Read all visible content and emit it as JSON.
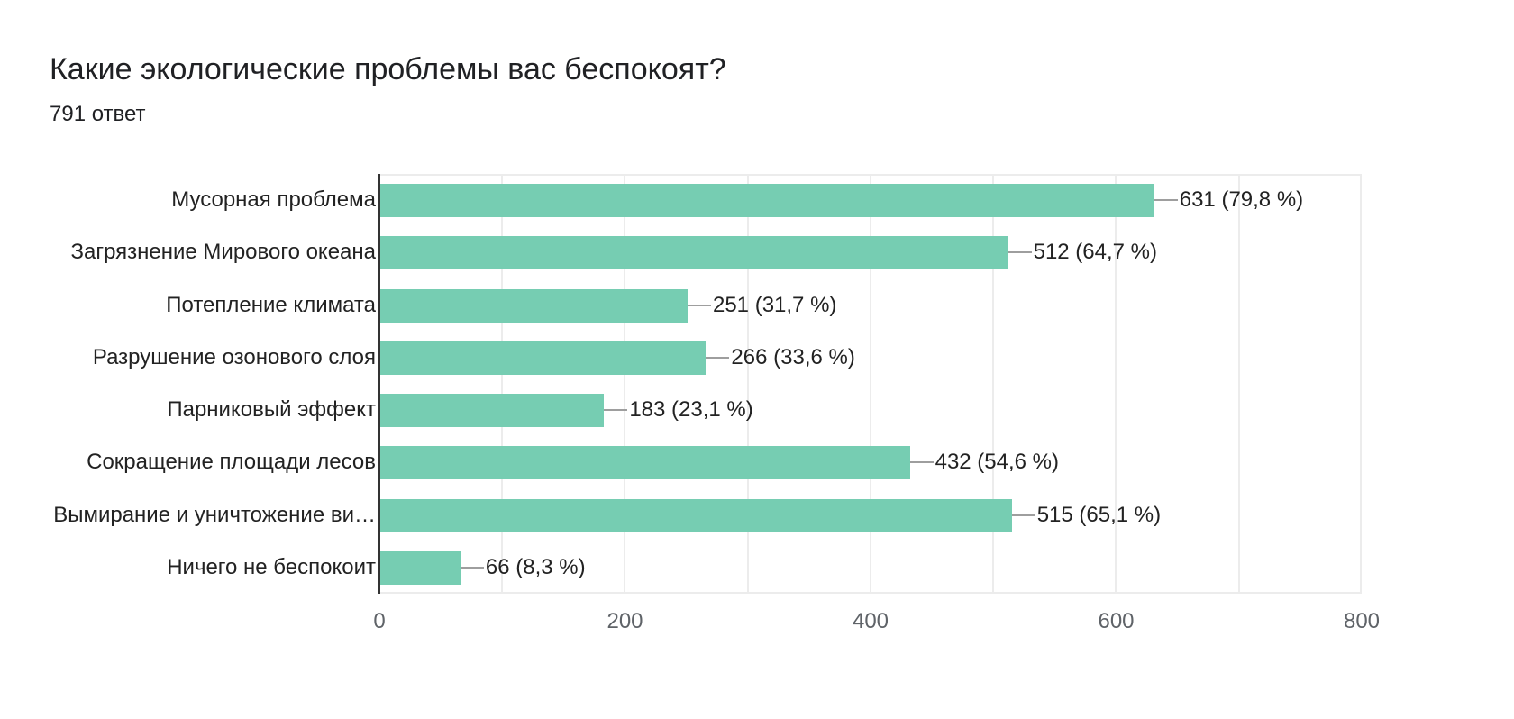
{
  "header": {
    "title": "Какие экологические проблемы вас беспокоят?",
    "subtitle": "791 ответ"
  },
  "colors": {
    "bar": "#76cdb2",
    "grid": "#ececec",
    "axis": "#333333"
  },
  "chart_data": {
    "type": "bar",
    "orientation": "horizontal",
    "title": "Какие экологические проблемы вас беспокоят?",
    "subtitle": "791 ответ",
    "categories": [
      "Мусорная проблема",
      "Загрязнение Мирового океана",
      "Потепление климата",
      "Разрушение озонового слоя",
      "Парниковый эффект",
      "Сокращение площади лесов",
      "Вымирание и уничтожение ви…",
      "Ничего не беспокоит"
    ],
    "values": [
      631,
      512,
      251,
      266,
      183,
      432,
      515,
      66
    ],
    "labels": [
      "631 (79,8 %)",
      "512 (64,7 %)",
      "251 (31,7 %)",
      "266 (33,6 %)",
      "183 (23,1 %)",
      "432 (54,6 %)",
      "515 (65,1 %)",
      "66 (8,3 %)"
    ],
    "percentages": [
      79.8,
      64.7,
      31.7,
      33.6,
      23.1,
      54.6,
      65.1,
      8.3
    ],
    "xlabel": "",
    "ylabel": "",
    "xlim": [
      0,
      800
    ],
    "xticks": [
      "0",
      "200",
      "400",
      "600",
      "800"
    ],
    "grid": true,
    "legend": "none"
  }
}
